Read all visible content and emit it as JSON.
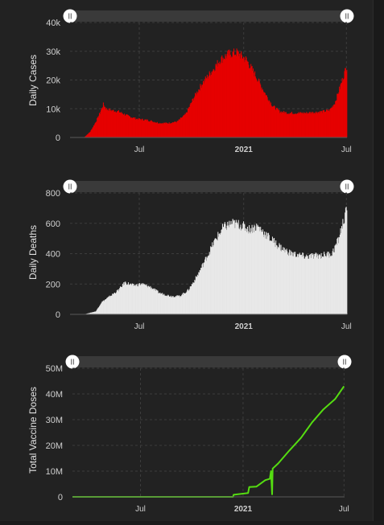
{
  "colors": {
    "background": "#222222",
    "grid": "#3c3c3c",
    "axis": "#5a5a5a",
    "tick_text": "#cfcfcf",
    "slider_track": "#3a3a3a",
    "slider_handle": "#ffffff"
  },
  "chart_data": [
    {
      "type": "bar",
      "ylabel": "Daily Cases",
      "color": "#e60000",
      "ylim": [
        0,
        40000
      ],
      "ticks": [
        "40k",
        "30k",
        "20k",
        "10k",
        "0"
      ],
      "xticks": [
        "Jul",
        "2021",
        "Jul"
      ],
      "grid": true,
      "x_range": [
        "2020-03-01",
        "2021-07-02"
      ],
      "keypoints": [
        [
          "2020-03-01",
          0
        ],
        [
          "2020-03-25",
          0
        ],
        [
          "2020-04-05",
          2000
        ],
        [
          "2020-04-15",
          5500
        ],
        [
          "2020-04-22",
          8500
        ],
        [
          "2020-04-28",
          11500
        ],
        [
          "2020-05-03",
          10000
        ],
        [
          "2020-05-10",
          9500
        ],
        [
          "2020-05-25",
          9000
        ],
        [
          "2020-06-10",
          7500
        ],
        [
          "2020-06-25",
          6500
        ],
        [
          "2020-07-15",
          6000
        ],
        [
          "2020-08-05",
          5000
        ],
        [
          "2020-08-20",
          5000
        ],
        [
          "2020-09-05",
          5500
        ],
        [
          "2020-09-20",
          8000
        ],
        [
          "2020-10-05",
          14000
        ],
        [
          "2020-10-20",
          19000
        ],
        [
          "2020-11-05",
          23000
        ],
        [
          "2020-11-20",
          27000
        ],
        [
          "2020-12-05",
          29000
        ],
        [
          "2020-12-20",
          29500
        ],
        [
          "2021-01-05",
          27000
        ],
        [
          "2021-01-20",
          22000
        ],
        [
          "2021-02-05",
          16000
        ],
        [
          "2021-02-20",
          11000
        ],
        [
          "2021-03-05",
          9000
        ],
        [
          "2021-03-20",
          8500
        ],
        [
          "2021-04-20",
          8500
        ],
        [
          "2021-05-20",
          9000
        ],
        [
          "2021-06-01",
          9500
        ],
        [
          "2021-06-10",
          12000
        ],
        [
          "2021-06-20",
          18000
        ],
        [
          "2021-07-01",
          25000
        ]
      ]
    },
    {
      "type": "bar",
      "ylabel": "Daily Deaths",
      "color": "#e8e8e8",
      "ylim": [
        0,
        800
      ],
      "ticks": [
        "800",
        "600",
        "400",
        "200",
        "0"
      ],
      "xticks": [
        "Jul",
        "2021",
        "Jul"
      ],
      "grid": true,
      "x_range": [
        "2020-03-01",
        "2021-07-02"
      ],
      "keypoints": [
        [
          "2020-03-01",
          0
        ],
        [
          "2020-03-25",
          0
        ],
        [
          "2020-04-15",
          20
        ],
        [
          "2020-04-25",
          80
        ],
        [
          "2020-05-10",
          120
        ],
        [
          "2020-05-25",
          160
        ],
        [
          "2020-06-05",
          210
        ],
        [
          "2020-06-20",
          190
        ],
        [
          "2020-07-05",
          200
        ],
        [
          "2020-07-20",
          180
        ],
        [
          "2020-08-05",
          140
        ],
        [
          "2020-08-25",
          120
        ],
        [
          "2020-09-10",
          120
        ],
        [
          "2020-09-25",
          160
        ],
        [
          "2020-10-10",
          250
        ],
        [
          "2020-10-25",
          360
        ],
        [
          "2020-11-10",
          480
        ],
        [
          "2020-11-25",
          570
        ],
        [
          "2020-12-10",
          600
        ],
        [
          "2020-12-25",
          590
        ],
        [
          "2021-01-10",
          560
        ],
        [
          "2021-01-25",
          580
        ],
        [
          "2021-02-10",
          520
        ],
        [
          "2021-02-25",
          470
        ],
        [
          "2021-03-10",
          430
        ],
        [
          "2021-03-25",
          400
        ],
        [
          "2021-04-20",
          380
        ],
        [
          "2021-05-20",
          390
        ],
        [
          "2021-06-05",
          400
        ],
        [
          "2021-06-15",
          480
        ],
        [
          "2021-06-25",
          610
        ],
        [
          "2021-07-01",
          690
        ]
      ]
    },
    {
      "type": "line",
      "ylabel": "Total Vaccine Doses",
      "color": "#55dd11",
      "ylim": [
        0,
        50000000
      ],
      "ticks": [
        "50M",
        "40M",
        "30M",
        "20M",
        "10M",
        "0"
      ],
      "xticks": [
        "Jul",
        "2021",
        "Jul"
      ],
      "grid": true,
      "x_range": [
        "2020-03-01",
        "2021-07-02"
      ],
      "keypoints": [
        [
          "2020-03-01",
          0
        ],
        [
          "2020-12-14",
          0
        ],
        [
          "2020-12-15",
          800000
        ],
        [
          "2021-01-10",
          1500000
        ],
        [
          "2021-01-12",
          3800000
        ],
        [
          "2021-01-25",
          4000000
        ],
        [
          "2021-02-10",
          6500000
        ],
        [
          "2021-02-18",
          7000000
        ],
        [
          "2021-02-20",
          10000000
        ],
        [
          "2021-02-22",
          1000000
        ],
        [
          "2021-02-23",
          11000000
        ],
        [
          "2021-03-05",
          13000000
        ],
        [
          "2021-03-25",
          18000000
        ],
        [
          "2021-04-15",
          23000000
        ],
        [
          "2021-05-05",
          29000000
        ],
        [
          "2021-05-25",
          34000000
        ],
        [
          "2021-06-15",
          38000000
        ],
        [
          "2021-07-01",
          43000000
        ]
      ]
    }
  ]
}
